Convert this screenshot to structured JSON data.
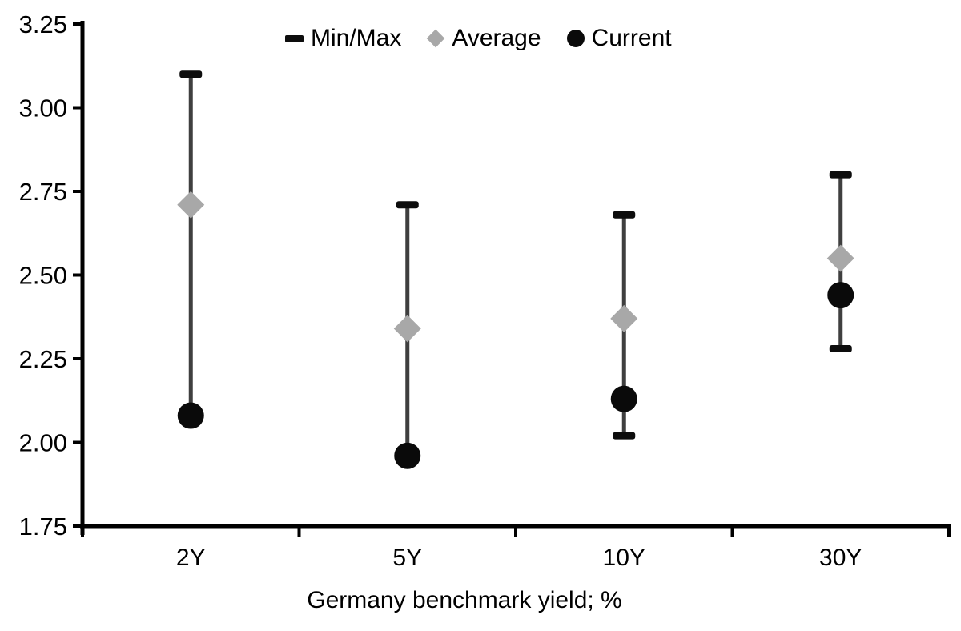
{
  "legend": {
    "items": [
      {
        "label": "Min/Max",
        "marker": "dash"
      },
      {
        "label": "Average",
        "marker": "diamond"
      },
      {
        "label": "Current",
        "marker": "circle"
      }
    ]
  },
  "chart_data": {
    "type": "scatter",
    "subtype": "min-max-range-with-markers",
    "title": "",
    "xlabel": "Germany benchmark yield; %",
    "ylabel": "",
    "categories": [
      "2Y",
      "5Y",
      "10Y",
      "30Y"
    ],
    "series": [
      {
        "name": "Max",
        "values": [
          3.1,
          2.71,
          2.68,
          2.8
        ]
      },
      {
        "name": "Min",
        "values": [
          2.08,
          1.96,
          2.02,
          2.28
        ]
      },
      {
        "name": "Average",
        "values": [
          2.71,
          2.34,
          2.37,
          2.55
        ]
      },
      {
        "name": "Current",
        "values": [
          2.08,
          1.96,
          2.13,
          2.44
        ]
      }
    ],
    "ylim": [
      1.75,
      3.25
    ],
    "ytick_labels": [
      "3.25",
      "3.00",
      "2.75",
      "2.50",
      "2.25",
      "2.00",
      "1.75"
    ],
    "grid": false,
    "legend_position": "top-center"
  },
  "colors": {
    "axis": "#000000",
    "range_line": "#3f3f3f",
    "cap": "#0d0d0d",
    "average": "#a8a8a8",
    "current": "#0a0a0a",
    "text": "#000000",
    "background": "#ffffff"
  }
}
